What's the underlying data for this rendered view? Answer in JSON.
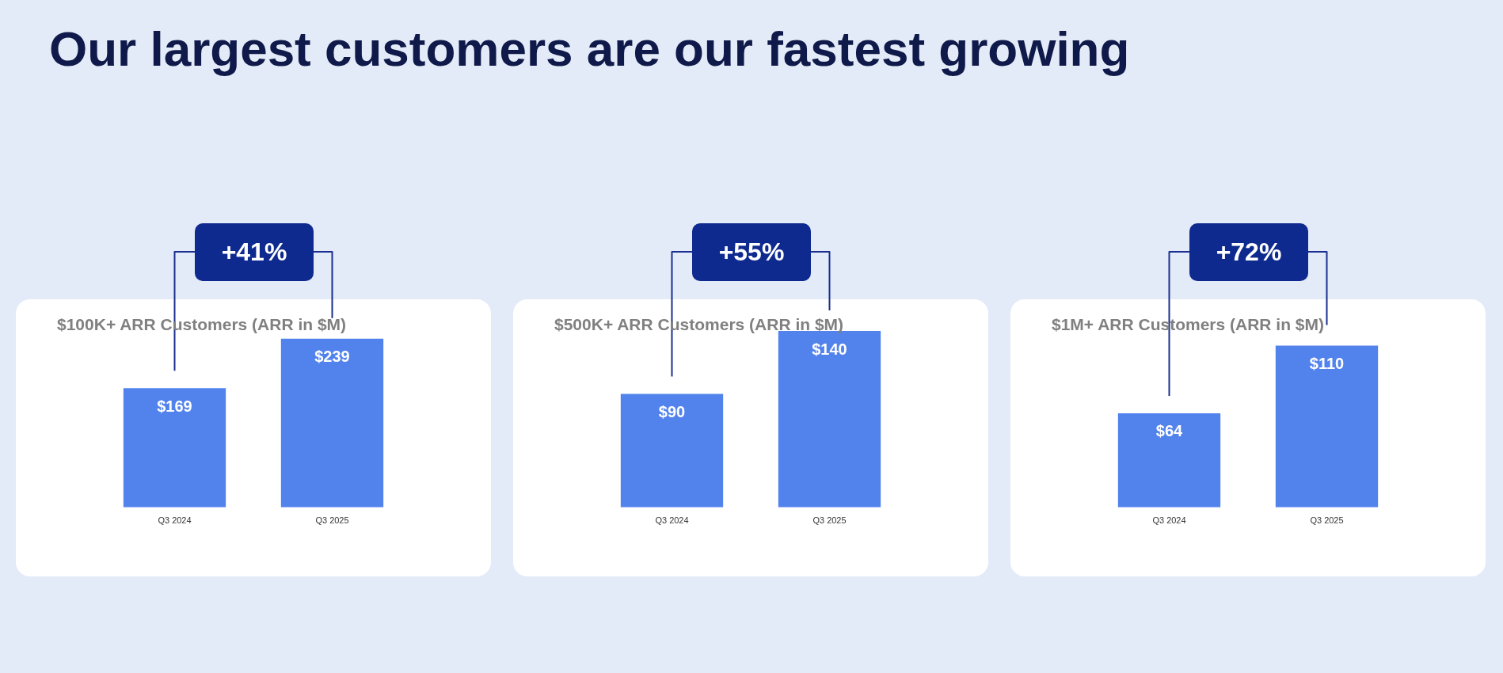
{
  "chart_data": [
    {
      "type": "bar",
      "title": "$100K+ ARR Customers (ARR in $M)",
      "categories": [
        "Q3 2024",
        "Q3 2025"
      ],
      "values": [
        169,
        239
      ],
      "value_labels": [
        "$169",
        "$239"
      ],
      "color": "#5283ec",
      "annotations": [
        "+41%",
        "Our largest customers are our fastest growing"
      ]
    },
    {
      "type": "bar",
      "title": "$500K+ ARR Customers (ARR in $M)",
      "categories": [
        "Q3 2024",
        "Q3 2025"
      ],
      "values": [
        90,
        140
      ],
      "value_labels": [
        "$90",
        "$140"
      ],
      "color": "#5283ec",
      "annotations": [
        "+55%"
      ]
    },
    {
      "type": "bar",
      "title": "$1M+ ARR Customers (ARR in $M)",
      "categories": [
        "Q3 2024",
        "Q3 2025"
      ],
      "values": [
        64,
        110
      ],
      "value_labels": [
        "$64",
        "$110"
      ],
      "color": "#5283ec",
      "annotations": [
        "+72%"
      ]
    }
  ]
}
